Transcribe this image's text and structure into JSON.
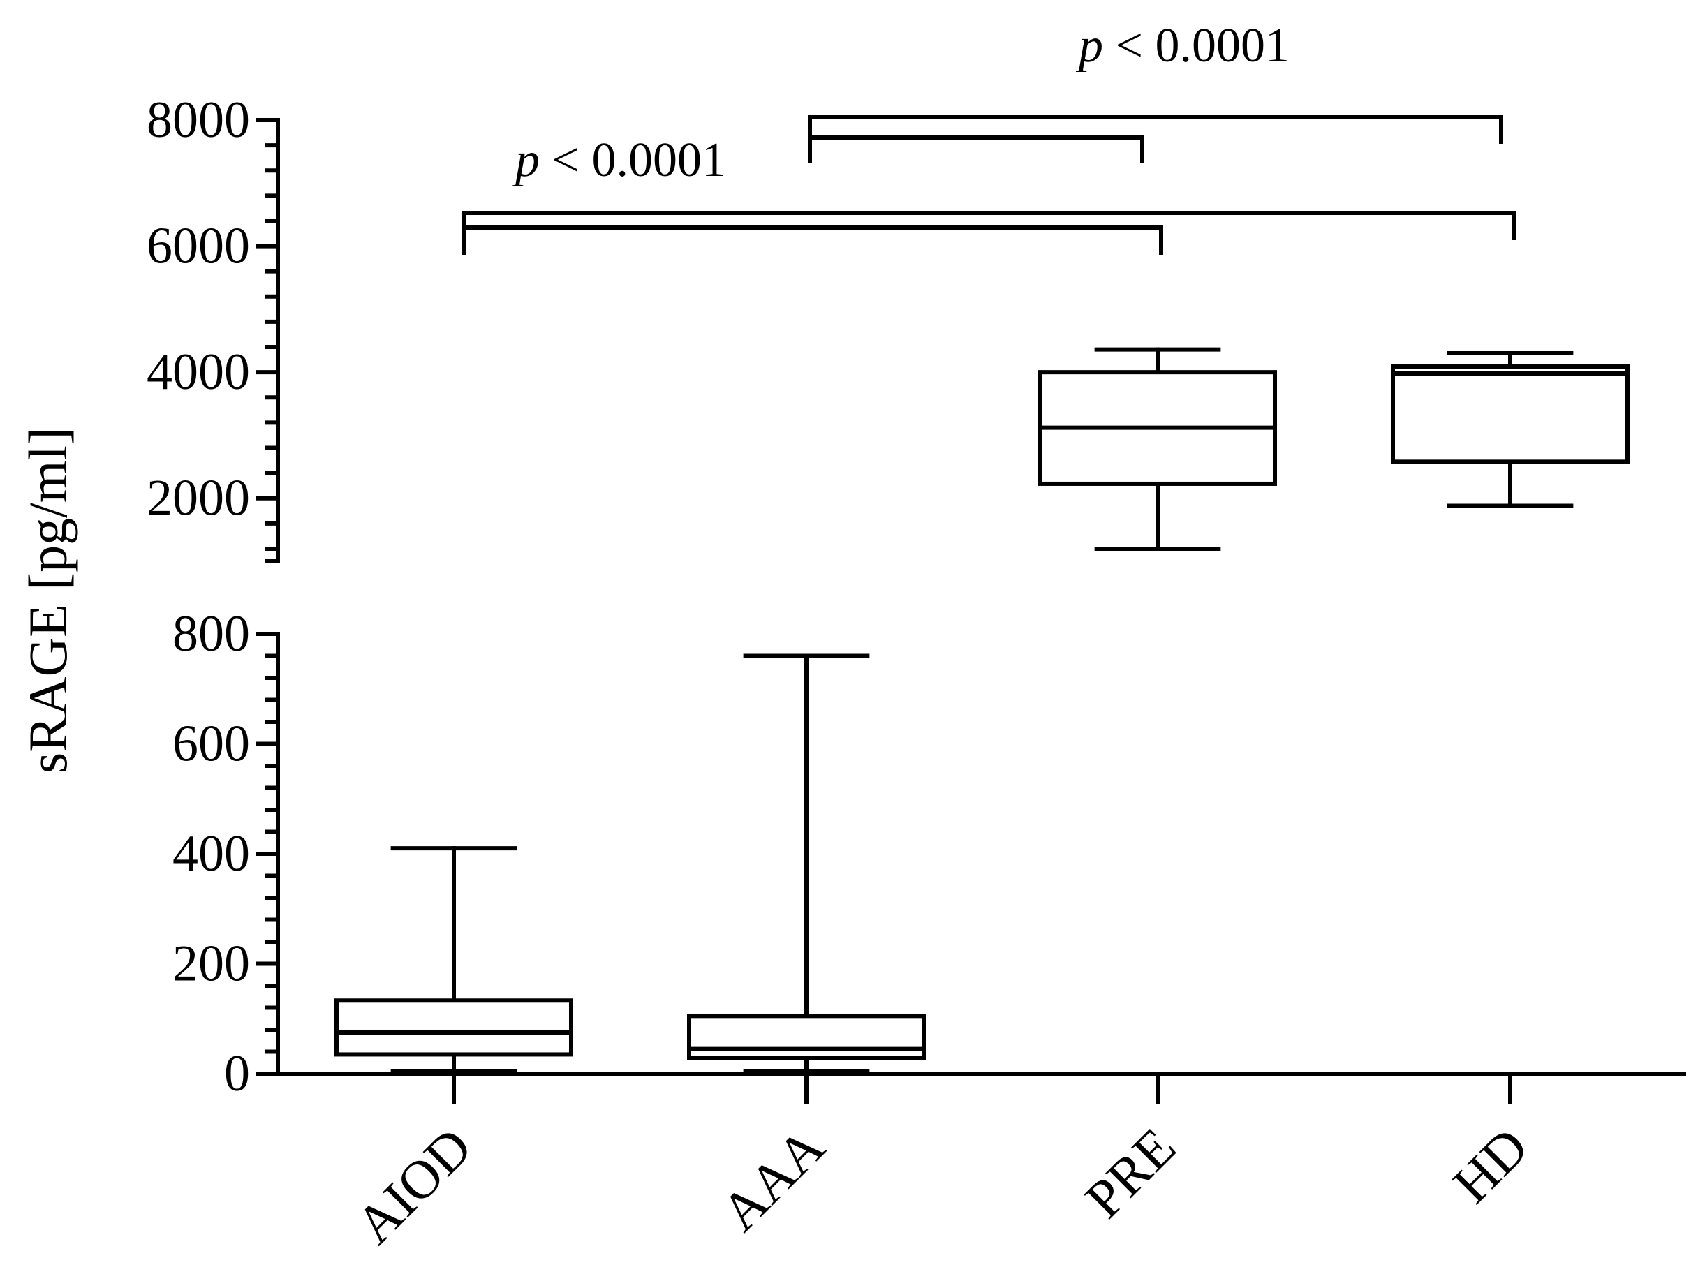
{
  "chart_data": {
    "type": "box",
    "ylabel": "sRAGE [pg/ml]",
    "categories": [
      "AIOD",
      "AAA",
      "PRE",
      "HD"
    ],
    "y_axis_break": true,
    "lower_axis": {
      "ylim": [
        0,
        800
      ],
      "tick_labels": [
        "0",
        "200",
        "400",
        "600",
        "800"
      ],
      "tick_values": [
        0,
        200,
        400,
        600,
        800
      ],
      "minor_step": 40
    },
    "upper_axis": {
      "ylim": [
        1000,
        8000
      ],
      "tick_labels": [
        "2000",
        "4000",
        "6000",
        "8000"
      ],
      "tick_values": [
        2000,
        4000,
        6000,
        8000
      ],
      "minor_step": 400
    },
    "boxes": [
      {
        "category": "AIOD",
        "min": 5,
        "q1": 35,
        "median": 75,
        "q3": 133,
        "max": 410
      },
      {
        "category": "AAA",
        "min": 5,
        "q1": 28,
        "median": 45,
        "q3": 105,
        "max": 760
      },
      {
        "category": "PRE",
        "min": 1200,
        "q1": 2230,
        "median": 3120,
        "q3": 4000,
        "max": 4360
      },
      {
        "category": "HD",
        "min": 1880,
        "q1": 2580,
        "median": 3980,
        "q3": 4090,
        "max": 4300
      }
    ],
    "annotations": [
      {
        "text_pre": "p",
        "text_post": " < 0.0001",
        "from": "AIOD",
        "to": [
          "PRE",
          "HD"
        ]
      },
      {
        "text_pre": "p",
        "text_post": " < 0.0001",
        "from": "AAA",
        "to": [
          "PRE",
          "HD"
        ]
      }
    ]
  }
}
